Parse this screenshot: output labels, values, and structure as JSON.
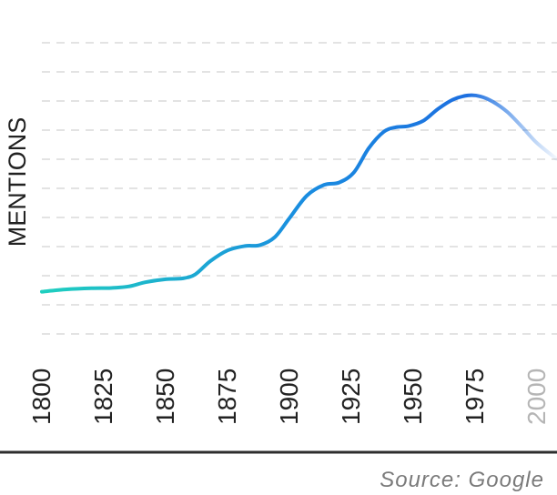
{
  "chart_data": {
    "type": "line",
    "title": "",
    "xlabel": "",
    "ylabel": "MENTIONS",
    "x_ticks": [
      1800,
      1825,
      1850,
      1875,
      1900,
      1925,
      1950,
      1975,
      2000
    ],
    "x_tick_labels": [
      "1800",
      "1825",
      "1850",
      "1875",
      "1900",
      "1925",
      "1950",
      "1975",
      "2000"
    ],
    "xlim": [
      1800,
      2008
    ],
    "ylim": [
      0,
      10
    ],
    "grid": {
      "horizontal": true,
      "style": "dashed",
      "lines": 10
    },
    "y_tick_labels_shown": false,
    "series": [
      {
        "gradient_colors": [
          "#1fcfbf",
          "#1a8ee0",
          "#1c6fe0"
        ],
        "fade_after_peak": true,
        "x": [
          1800,
          1810,
          1820,
          1828,
          1835,
          1842,
          1850,
          1857,
          1862,
          1868,
          1875,
          1882,
          1888,
          1894,
          1900,
          1907,
          1914,
          1920,
          1926,
          1932,
          1938,
          1943,
          1948,
          1954,
          1960,
          1966,
          1972,
          1977,
          1982,
          1988,
          1994,
          2000,
          2008
        ],
        "y": [
          1.45,
          1.53,
          1.57,
          1.58,
          1.63,
          1.78,
          1.88,
          1.91,
          2.05,
          2.5,
          2.87,
          3.02,
          3.05,
          3.32,
          3.98,
          4.75,
          5.12,
          5.2,
          5.55,
          6.38,
          6.94,
          7.1,
          7.14,
          7.32,
          7.73,
          8.05,
          8.19,
          8.16,
          7.98,
          7.62,
          7.1,
          6.55,
          6.0
        ]
      }
    ]
  },
  "source": {
    "label": "Source: Google"
  },
  "colors": {
    "grid": "#e3e3e3",
    "axis_label": "#222222",
    "tick_label": "#222222",
    "tick_label_faded": "#b5b5b5",
    "baseline": "#2e2e2e",
    "source_text": "#7a7a7a"
  }
}
